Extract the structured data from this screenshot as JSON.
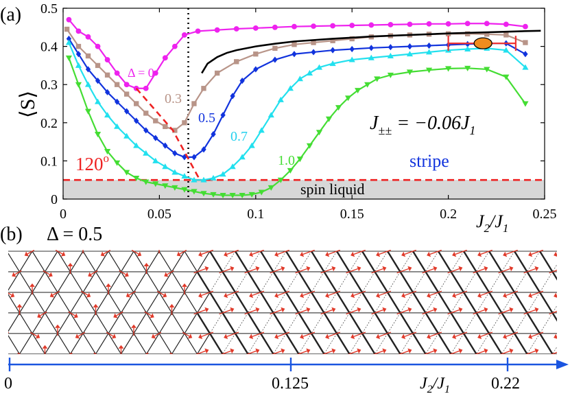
{
  "panel_a_label": "(a)",
  "panel_b_label": "(b)",
  "chart_data": {
    "type": "line",
    "xlabel": "J2/J1",
    "ylabel": "⟨S⟩",
    "xlim": [
      0,
      0.25
    ],
    "ylim": [
      0,
      0.5
    ],
    "xticks": [
      0,
      0.05,
      0.1,
      0.15,
      0.2,
      0.25
    ],
    "xtick_labels": [
      "0",
      "0.05",
      "0.1",
      "0.15",
      "0.2",
      "0.25"
    ],
    "yticks": [
      0,
      0.1,
      0.2,
      0.3,
      0.4,
      0.5
    ],
    "ytick_labels": [
      "0",
      "0.1",
      "0.2",
      "0.3",
      "0.4",
      "0.5"
    ],
    "annotation_coupling": "J±± = −0.06J1",
    "region_labels": {
      "c120": "120",
      "c120_sup": "o",
      "stripe": "stripe",
      "spin_liquid": "spin liquid"
    },
    "colors": {
      "d0": "#ee22ee",
      "d03": "#b89488",
      "d05": "#1133dd",
      "d07": "#22e0ee",
      "d10": "#44dd33",
      "guide": "#ee2222",
      "fit": "#000000",
      "errbar": "#ee3333",
      "ellipse": "#f08c1e",
      "shade": "#d7d7d7",
      "axis": "#1a55e0"
    },
    "series": [
      {
        "name": "Δ = 0",
        "label": "Δ = 0",
        "marker": "circle",
        "color_key": "d0",
        "x": [
          0.003,
          0.008,
          0.013,
          0.018,
          0.023,
          0.028,
          0.033,
          0.038,
          0.043,
          0.048,
          0.053,
          0.058,
          0.063,
          0.07,
          0.08,
          0.09,
          0.1,
          0.11,
          0.12,
          0.13,
          0.14,
          0.15,
          0.16,
          0.17,
          0.18,
          0.19,
          0.2,
          0.21,
          0.22,
          0.23,
          0.24
        ],
        "y": [
          0.47,
          0.44,
          0.425,
          0.4,
          0.365,
          0.33,
          0.3,
          0.29,
          0.29,
          0.33,
          0.37,
          0.4,
          0.43,
          0.44,
          0.443,
          0.446,
          0.448,
          0.45,
          0.452,
          0.453,
          0.454,
          0.455,
          0.456,
          0.457,
          0.458,
          0.459,
          0.459,
          0.46,
          0.46,
          0.458,
          0.452
        ]
      },
      {
        "name": "0.3",
        "label": "0.3",
        "marker": "square",
        "color_key": "d03",
        "x": [
          0.002,
          0.008,
          0.013,
          0.018,
          0.023,
          0.028,
          0.033,
          0.038,
          0.043,
          0.048,
          0.053,
          0.058,
          0.063,
          0.068,
          0.073,
          0.08,
          0.09,
          0.1,
          0.11,
          0.12,
          0.13,
          0.14,
          0.15,
          0.16,
          0.17,
          0.18,
          0.19,
          0.2,
          0.21,
          0.22,
          0.23,
          0.24
        ],
        "y": [
          0.445,
          0.4,
          0.375,
          0.35,
          0.325,
          0.3,
          0.275,
          0.25,
          0.225,
          0.205,
          0.19,
          0.18,
          0.2,
          0.25,
          0.29,
          0.33,
          0.36,
          0.38,
          0.395,
          0.405,
          0.41,
          0.415,
          0.42,
          0.425,
          0.428,
          0.43,
          0.432,
          0.433,
          0.433,
          0.432,
          0.43,
          0.41
        ]
      },
      {
        "name": "0.5",
        "label": "0.5",
        "marker": "diamond",
        "color_key": "d05",
        "x": [
          0.003,
          0.008,
          0.013,
          0.018,
          0.023,
          0.028,
          0.033,
          0.038,
          0.043,
          0.048,
          0.053,
          0.058,
          0.063,
          0.068,
          0.073,
          0.078,
          0.083,
          0.088,
          0.093,
          0.1,
          0.11,
          0.12,
          0.13,
          0.14,
          0.15,
          0.16,
          0.17,
          0.18,
          0.19,
          0.2,
          0.21,
          0.22,
          0.23,
          0.24
        ],
        "y": [
          0.42,
          0.38,
          0.34,
          0.31,
          0.28,
          0.255,
          0.23,
          0.205,
          0.18,
          0.16,
          0.14,
          0.12,
          0.11,
          0.11,
          0.13,
          0.17,
          0.22,
          0.27,
          0.31,
          0.34,
          0.365,
          0.38,
          0.385,
          0.39,
          0.393,
          0.396,
          0.398,
          0.4,
          0.402,
          0.404,
          0.406,
          0.408,
          0.408,
          0.38
        ]
      },
      {
        "name": "0.7",
        "label": "0.7",
        "marker": "triangle-up",
        "color_key": "d07",
        "x": [
          0.003,
          0.008,
          0.013,
          0.018,
          0.023,
          0.028,
          0.033,
          0.038,
          0.043,
          0.048,
          0.053,
          0.058,
          0.063,
          0.068,
          0.073,
          0.078,
          0.083,
          0.088,
          0.093,
          0.098,
          0.103,
          0.108,
          0.113,
          0.118,
          0.123,
          0.128,
          0.133,
          0.14,
          0.15,
          0.16,
          0.17,
          0.18,
          0.19,
          0.2,
          0.21,
          0.22,
          0.23,
          0.24
        ],
        "y": [
          0.41,
          0.35,
          0.3,
          0.255,
          0.22,
          0.19,
          0.165,
          0.14,
          0.12,
          0.1,
          0.085,
          0.07,
          0.06,
          0.05,
          0.05,
          0.055,
          0.065,
          0.085,
          0.11,
          0.14,
          0.18,
          0.22,
          0.26,
          0.29,
          0.315,
          0.33,
          0.345,
          0.355,
          0.365,
          0.37,
          0.375,
          0.38,
          0.385,
          0.39,
          0.393,
          0.395,
          0.39,
          0.345
        ]
      },
      {
        "name": "1.0",
        "label": "1.0",
        "marker": "triangle-down",
        "color_key": "d10",
        "x": [
          0.003,
          0.008,
          0.013,
          0.018,
          0.023,
          0.028,
          0.033,
          0.038,
          0.043,
          0.048,
          0.053,
          0.058,
          0.063,
          0.068,
          0.073,
          0.078,
          0.083,
          0.088,
          0.093,
          0.098,
          0.103,
          0.108,
          0.113,
          0.118,
          0.123,
          0.128,
          0.133,
          0.138,
          0.143,
          0.148,
          0.153,
          0.158,
          0.163,
          0.17,
          0.18,
          0.19,
          0.2,
          0.21,
          0.22,
          0.23,
          0.24
        ],
        "y": [
          0.37,
          0.3,
          0.23,
          0.17,
          0.125,
          0.095,
          0.07,
          0.055,
          0.045,
          0.04,
          0.035,
          0.03,
          0.025,
          0.02,
          0.015,
          0.012,
          0.01,
          0.01,
          0.01,
          0.012,
          0.018,
          0.03,
          0.05,
          0.075,
          0.105,
          0.14,
          0.175,
          0.21,
          0.24,
          0.265,
          0.285,
          0.3,
          0.315,
          0.325,
          0.333,
          0.338,
          0.342,
          0.343,
          0.34,
          0.32,
          0.25
        ]
      }
    ],
    "fit_curve": {
      "x": [
        0.072,
        0.075,
        0.08,
        0.085,
        0.09,
        0.1,
        0.11,
        0.12,
        0.14,
        0.16,
        0.18,
        0.2,
        0.22,
        0.24,
        0.248
      ],
      "y": [
        0.33,
        0.355,
        0.372,
        0.383,
        0.39,
        0.4,
        0.407,
        0.413,
        0.42,
        0.426,
        0.43,
        0.434,
        0.437,
        0.44,
        0.441
      ]
    },
    "guide_line": {
      "x": [
        0.038,
        0.057,
        0.071
      ],
      "y": [
        0.29,
        0.18,
        0.05
      ]
    },
    "critical_line_x": 0.065,
    "spin_liquid_threshold": 0.05,
    "error_bar": {
      "x_low": 0.2,
      "x_high": 0.235,
      "x_center": 0.218,
      "y": 0.408
    }
  },
  "panel_b": {
    "delta_label": "Δ = 0.5",
    "axis_ticks": [
      0,
      0.125,
      0.22
    ],
    "axis_tick_labels": [
      "0",
      "0.125",
      "0.22"
    ],
    "axis_label": "J2/J1"
  }
}
